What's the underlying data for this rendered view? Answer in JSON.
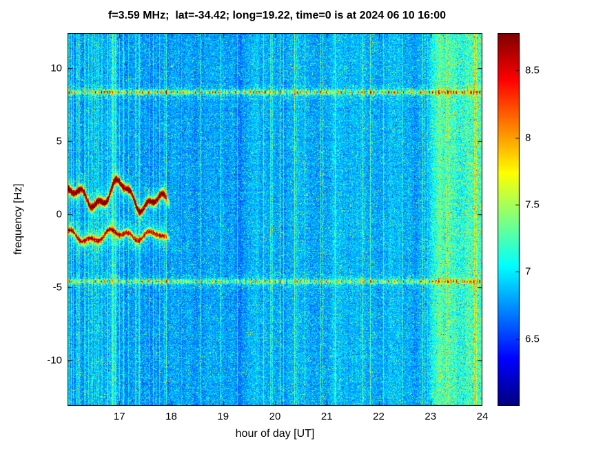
{
  "title": "f=3.59 MHz;  lat=-34.42; long=19.22, time=0 is at 2024 06 10 16:00",
  "chart_data": {
    "type": "heatmap",
    "title": "f=3.59 MHz;  lat=-34.42; long=19.22, time=0 is at 2024 06 10 16:00",
    "xlabel": "hour of day [UT]",
    "ylabel": "frequency [Hz]",
    "xlim": [
      16,
      24
    ],
    "ylim": [
      -13.1,
      12.4
    ],
    "clim": [
      6.0,
      8.78
    ],
    "xticks": [
      17,
      18,
      19,
      20,
      21,
      22,
      23,
      24
    ],
    "yticks": [
      -10,
      -5,
      0,
      5,
      10
    ],
    "colorbar_ticks": [
      6.5,
      7,
      7.5,
      8,
      8.5
    ],
    "colormap": "jet",
    "background_level": 6.78,
    "grid": false,
    "legend": "none",
    "features": [
      {
        "kind": "band",
        "freq": 8.35,
        "strength": 1.9,
        "time": [
          16,
          24
        ],
        "description": "dashed red-orange horizontal interference band near +8.3 Hz across full record"
      },
      {
        "kind": "band",
        "freq": -4.6,
        "strength": 1.55,
        "time": [
          16,
          24
        ],
        "description": "dashed orange horizontal interference band near -4.6 Hz across full record"
      },
      {
        "kind": "trace",
        "freq": 1.1,
        "strength": 2.2,
        "time": [
          16,
          18
        ],
        "description": "strong wavy dark-red Doppler trace near +1 Hz between 16:00 and 18:00 UT"
      },
      {
        "kind": "trace",
        "freq": -1.5,
        "strength": 1.6,
        "time": [
          16,
          18
        ],
        "description": "weaker wavy red Doppler trace near -1.5 Hz between 16:00 and 18:00 UT"
      },
      {
        "kind": "noise_band",
        "time": [
          22.85,
          24
        ],
        "strength": 0.35,
        "description": "enhanced green speckle noise band from about 22:50 to 24:00 UT"
      }
    ]
  }
}
